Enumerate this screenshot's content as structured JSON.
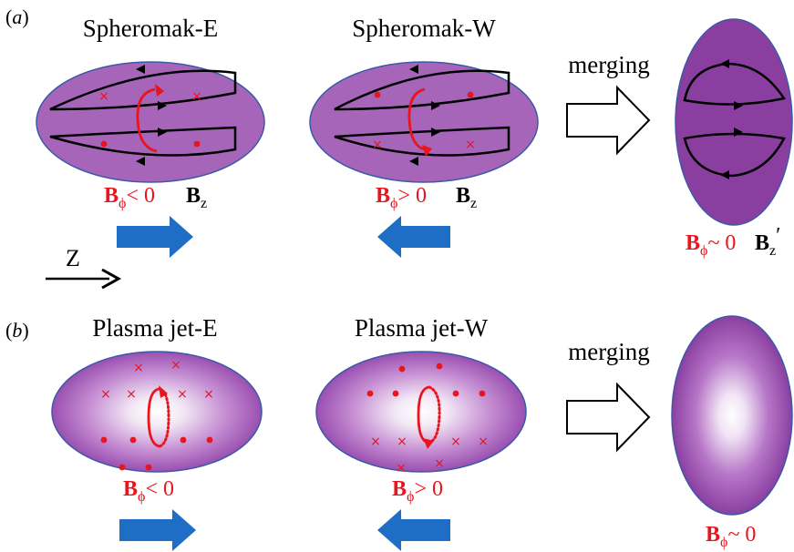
{
  "panel_a": {
    "label_open": "(",
    "label_letter": "a",
    "label_close": ")",
    "left": {
      "title": "Spheromak-E",
      "bphi_sym": "B",
      "bphi_sub": "ϕ",
      "bphi_rel": "< 0",
      "bz_sym": "B",
      "bz_sub": "z"
    },
    "middle": {
      "title": "Spheromak-W",
      "bphi_sym": "B",
      "bphi_sub": "ϕ",
      "bphi_rel": "> 0",
      "bz_sym": "B",
      "bz_sub": "z"
    },
    "merging_label": "merging",
    "result": {
      "bphi_sym": "B",
      "bphi_sub": "ϕ",
      "bphi_rel": "~ 0",
      "bz_sym": "B",
      "bz_sub": "z",
      "bz_prime": "′"
    },
    "axis_label": "Z"
  },
  "panel_b": {
    "label_open": "(",
    "label_letter": "b",
    "label_close": ")",
    "left": {
      "title": "Plasma jet-E",
      "bphi_sym": "B",
      "bphi_sub": "ϕ",
      "bphi_rel": "< 0"
    },
    "middle": {
      "title": "Plasma jet-W",
      "bphi_sym": "B",
      "bphi_sub": "ϕ",
      "bphi_rel": "> 0"
    },
    "merging_label": "merging",
    "result": {
      "bphi_sym": "B",
      "bphi_sub": "ϕ",
      "bphi_rel": "~ 0"
    }
  },
  "colors": {
    "plasma": "#a665b8",
    "plasma_dark": "#8a3fa0",
    "outline": "#3a5aa8",
    "field_red": "#e8141e",
    "velocity_arrow": "#1e6ec6"
  },
  "symbols": {
    "into_page": "×",
    "out_of_page": "●"
  }
}
